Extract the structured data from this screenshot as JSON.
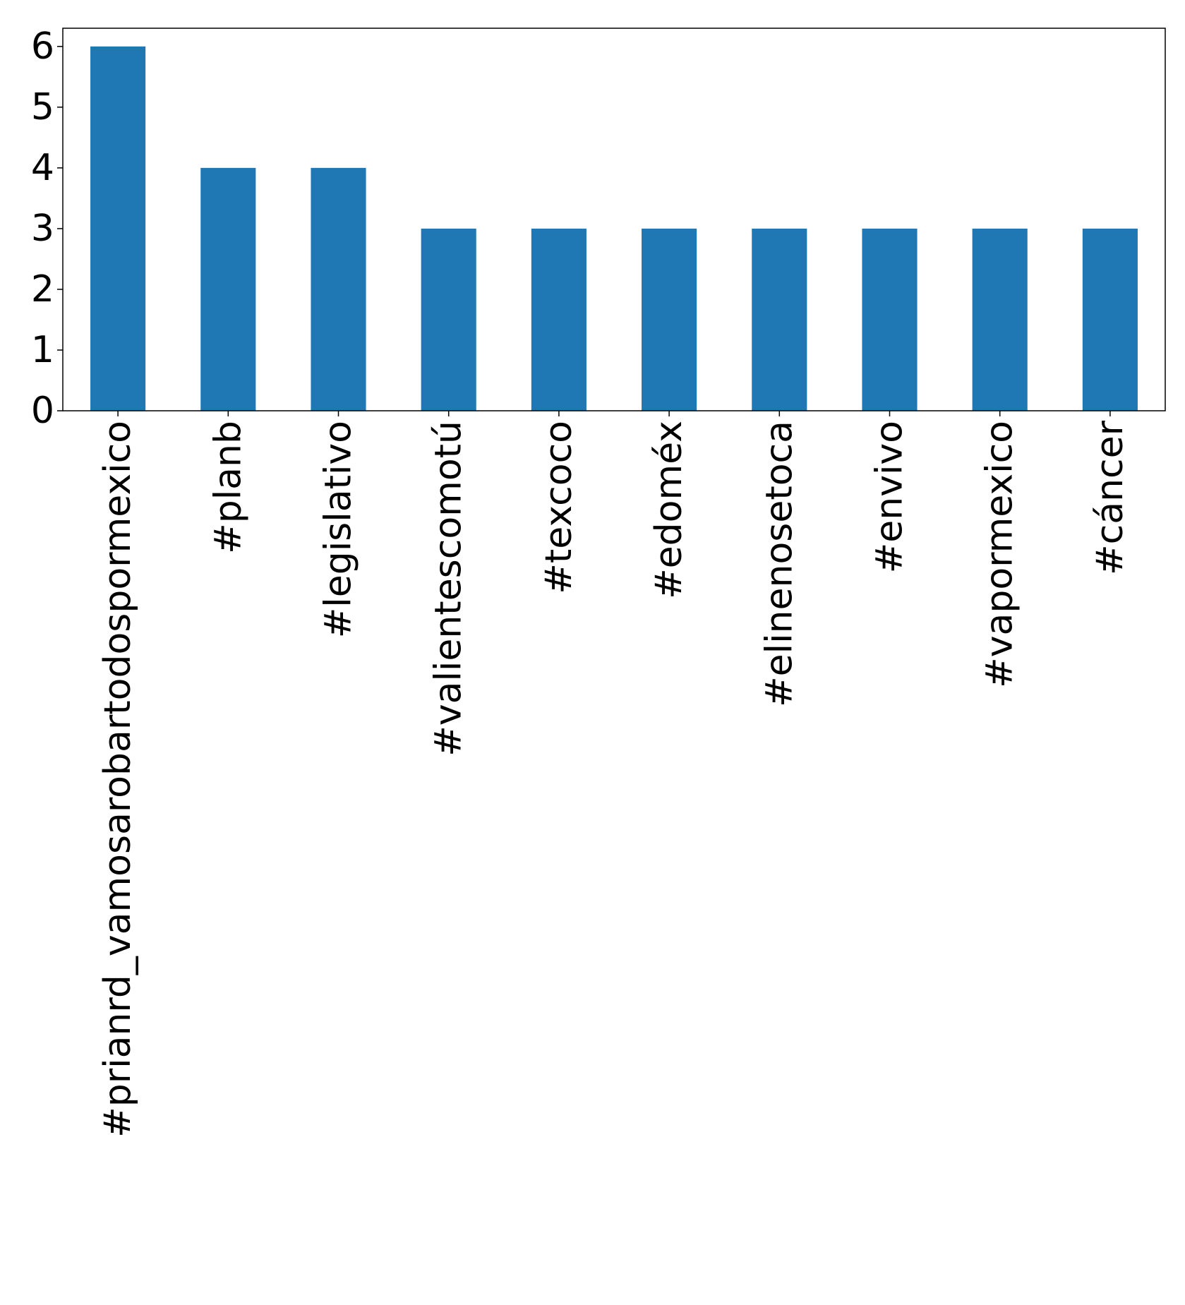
{
  "chart_data": {
    "type": "bar",
    "categories": [
      "#prianrd_vamosarobartodospormexico",
      "#planb",
      "#legislativo",
      "#valientescomotú",
      "#texcoco",
      "#edoméx",
      "#elinenosetoca",
      "#envivo",
      "#vapormexico",
      "#cáncer"
    ],
    "values": [
      6,
      4,
      4,
      3,
      3,
      3,
      3,
      3,
      3,
      3
    ],
    "ylim": [
      0,
      6.3
    ],
    "yticks": [
      "0",
      "1",
      "2",
      "3",
      "4",
      "5",
      "6"
    ],
    "title": "",
    "xlabel": "",
    "ylabel": "",
    "grid": false,
    "bar_color": "#1f77b4"
  }
}
